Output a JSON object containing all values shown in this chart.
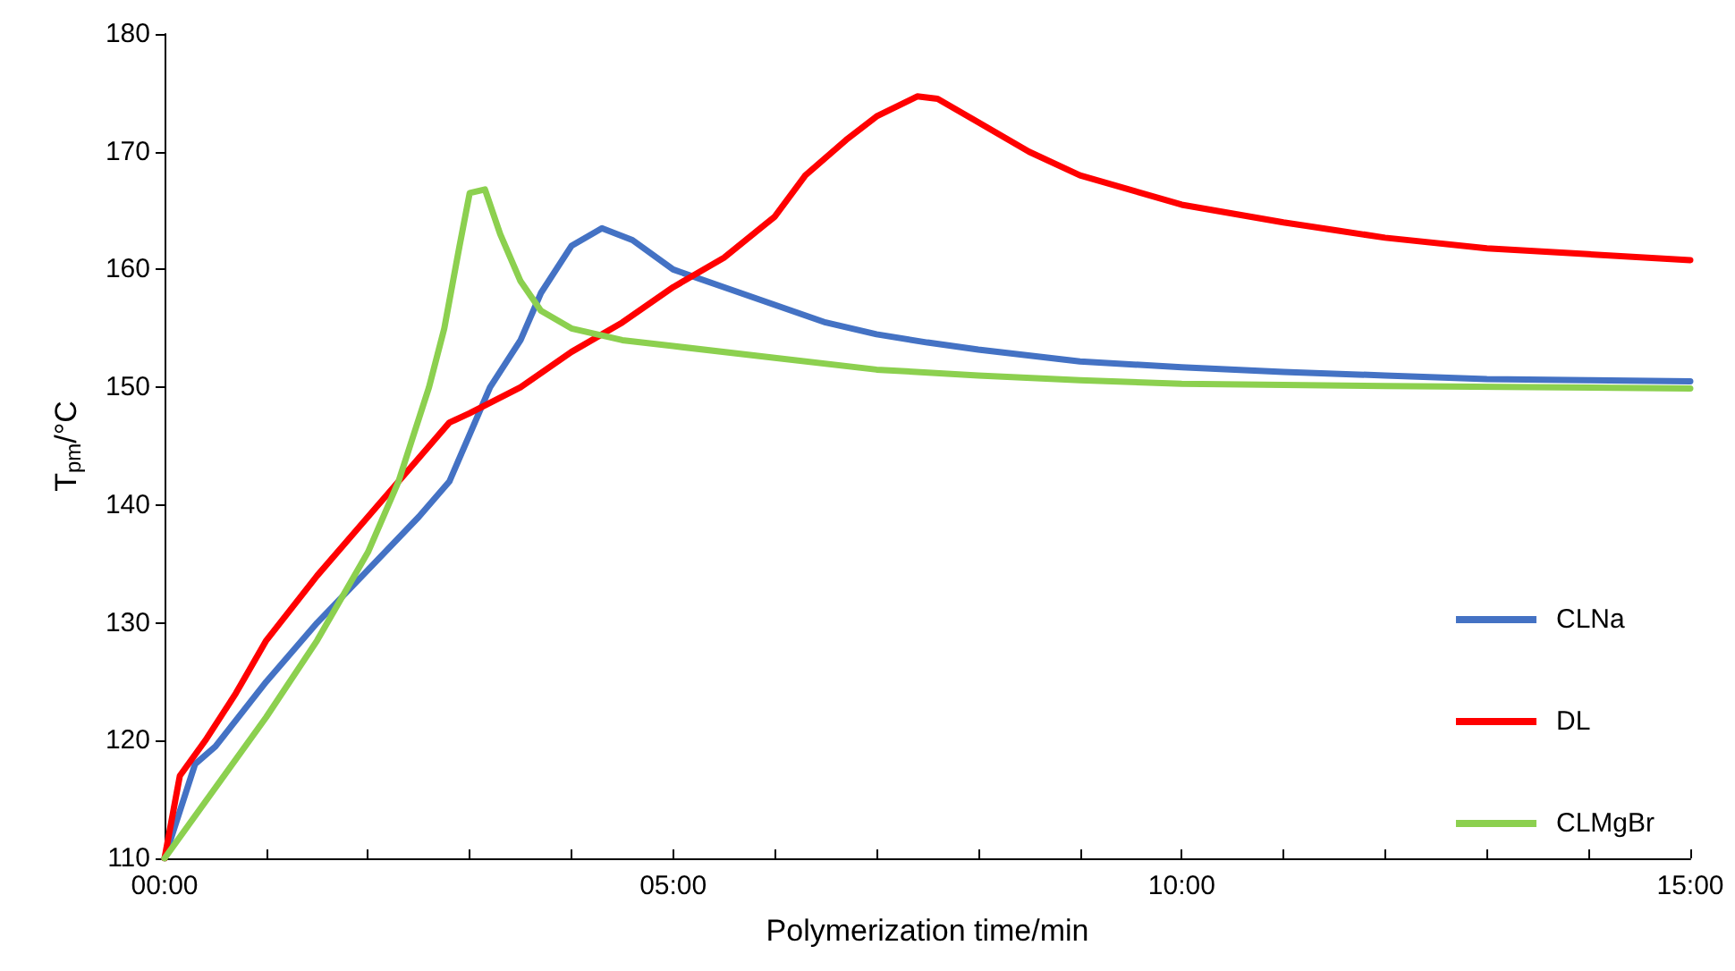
{
  "chart_data": {
    "type": "line",
    "xlabel": "Polymerization time/min",
    "ylabel": "T$_{pm}$/°C",
    "xlim": [
      0,
      15
    ],
    "ylim": [
      110,
      180
    ],
    "xticks": [
      {
        "value": 0,
        "label": "00:00"
      },
      {
        "value": 1,
        "label": null
      },
      {
        "value": 2,
        "label": null
      },
      {
        "value": 3,
        "label": null
      },
      {
        "value": 4,
        "label": null
      },
      {
        "value": 5,
        "label": "05:00"
      },
      {
        "value": 6,
        "label": null
      },
      {
        "value": 7,
        "label": null
      },
      {
        "value": 8,
        "label": null
      },
      {
        "value": 9,
        "label": null
      },
      {
        "value": 10,
        "label": "10:00"
      },
      {
        "value": 11,
        "label": null
      },
      {
        "value": 12,
        "label": null
      },
      {
        "value": 13,
        "label": null
      },
      {
        "value": 14,
        "label": null
      },
      {
        "value": 15,
        "label": "15:00"
      }
    ],
    "yticks": [
      110,
      120,
      130,
      140,
      150,
      160,
      170,
      180
    ],
    "grid": false,
    "legend": "bottom right",
    "marker": "none",
    "line_style": "solid",
    "series": [
      {
        "name": "CLNa",
        "color": "#4472c4",
        "x": [
          0,
          0.3,
          0.5,
          1,
          1.5,
          2,
          2.5,
          2.8,
          3.0,
          3.2,
          3.5,
          3.7,
          4.0,
          4.3,
          4.6,
          5.0,
          5.5,
          6,
          6.5,
          7,
          7.5,
          8,
          9,
          10,
          11,
          12,
          13,
          14,
          15
        ],
        "values": [
          110,
          118,
          119.5,
          125,
          130,
          134.5,
          139,
          142,
          146,
          150,
          154,
          158,
          162,
          163.5,
          162.5,
          160,
          158.5,
          157,
          155.5,
          154.5,
          153.8,
          153.2,
          152.2,
          151.7,
          151.3,
          151,
          150.7,
          150.6,
          150.5
        ]
      },
      {
        "name": "DL",
        "color": "#ff0000",
        "x": [
          0,
          0.15,
          0.4,
          0.7,
          1,
          1.5,
          2,
          2.5,
          2.8,
          3.0,
          3.5,
          4.0,
          4.5,
          5.0,
          5.5,
          6.0,
          6.3,
          6.7,
          7.0,
          7.4,
          7.6,
          8.0,
          8.5,
          9,
          10,
          11,
          12,
          13,
          14,
          15
        ],
        "values": [
          110,
          117,
          120,
          124,
          128.5,
          134,
          139,
          144,
          147,
          147.8,
          150,
          153,
          155.5,
          158.5,
          161,
          164.5,
          168,
          171,
          173,
          174.7,
          174.5,
          172.5,
          170,
          168,
          165.5,
          164,
          162.7,
          161.8,
          161.3,
          160.8
        ]
      },
      {
        "name": "CLMgBr",
        "color": "#8cd04f",
        "x": [
          0,
          1,
          1.5,
          2,
          2.3,
          2.6,
          2.75,
          2.9,
          3.0,
          3.15,
          3.3,
          3.5,
          3.7,
          4.0,
          4.5,
          5,
          6,
          7,
          8,
          9,
          10,
          12,
          15
        ],
        "values": [
          110,
          122,
          128.5,
          136,
          142,
          150,
          155,
          162,
          166.5,
          166.8,
          163,
          159,
          156.5,
          155,
          154,
          153.5,
          152.5,
          151.5,
          151,
          150.6,
          150.3,
          150.1,
          149.9
        ]
      }
    ]
  }
}
